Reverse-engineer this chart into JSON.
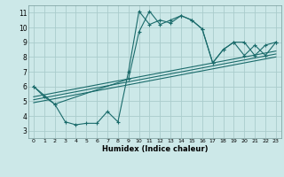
{
  "bg_color": "#cce8e8",
  "grid_color": "#aacccc",
  "line_color": "#1a6b6b",
  "xlabel": "Humidex (Indice chaleur)",
  "xlim": [
    -0.5,
    23.5
  ],
  "ylim": [
    2.5,
    11.5
  ],
  "xticks": [
    0,
    1,
    2,
    3,
    4,
    5,
    6,
    7,
    8,
    9,
    10,
    11,
    12,
    13,
    14,
    15,
    16,
    17,
    18,
    19,
    20,
    21,
    22,
    23
  ],
  "yticks": [
    3,
    4,
    5,
    6,
    7,
    8,
    9,
    10,
    11
  ],
  "curve1_x": [
    0,
    1,
    2,
    3,
    4,
    5,
    6,
    7,
    8,
    9,
    10,
    11,
    12,
    13,
    14,
    15,
    16,
    17,
    18,
    19,
    20,
    21,
    22,
    23
  ],
  "curve1_y": [
    6.0,
    5.3,
    4.8,
    3.6,
    3.4,
    3.5,
    3.5,
    4.3,
    3.6,
    7.0,
    11.1,
    10.2,
    10.5,
    10.3,
    10.8,
    10.5,
    9.9,
    7.6,
    8.5,
    9.0,
    9.0,
    8.1,
    8.8,
    9.0
  ],
  "curve2_x": [
    0,
    2,
    9,
    10,
    11,
    12,
    13,
    14,
    15,
    16,
    17,
    18,
    19,
    20,
    21,
    22,
    23
  ],
  "curve2_y": [
    6.0,
    4.8,
    6.5,
    9.7,
    11.1,
    10.2,
    10.5,
    10.8,
    10.5,
    9.9,
    7.6,
    8.5,
    9.0,
    8.1,
    8.8,
    8.1,
    9.0
  ],
  "line1_x": [
    0,
    23
  ],
  "line1_y": [
    5.1,
    8.2
  ],
  "line2_x": [
    0,
    23
  ],
  "line2_y": [
    5.3,
    8.4
  ],
  "line3_x": [
    0,
    23
  ],
  "line3_y": [
    4.9,
    8.0
  ]
}
